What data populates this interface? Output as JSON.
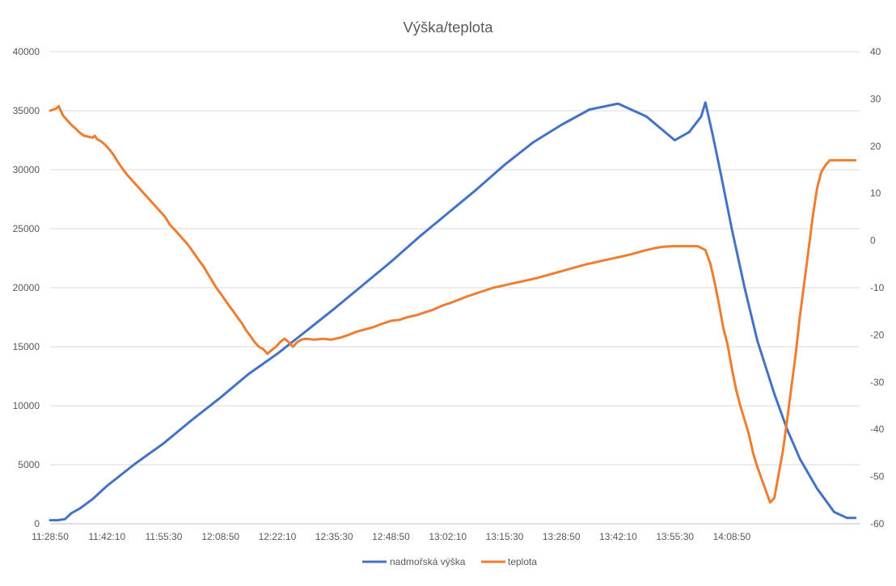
{
  "chart_data": {
    "type": "line",
    "title": "Výška/teplota",
    "x_ticks": [
      "11:28:50",
      "11:42:10",
      "11:55:30",
      "12:08:50",
      "12:22:10",
      "12:35:30",
      "12:48:50",
      "13:02:10",
      "13:15:30",
      "13:28:50",
      "13:42:10",
      "13:55:30",
      "14:08:50"
    ],
    "x_range_minutes": [
      0,
      190
    ],
    "y_left": {
      "ticks": [
        "0",
        "5000",
        "10000",
        "15000",
        "20000",
        "25000",
        "30000",
        "35000",
        "40000"
      ],
      "ylim": [
        0,
        40000
      ]
    },
    "y_right": {
      "ticks": [
        "-60",
        "-50",
        "-40",
        "-30",
        "-20",
        "-10",
        "0",
        "10",
        "20",
        "30",
        "40"
      ],
      "ylim": [
        -60,
        40
      ]
    },
    "grid": "horizontal",
    "legend_position": "bottom",
    "colors": {
      "altitude": "#4472C4",
      "temperature": "#ED7D31",
      "grid": "#D9D9D9",
      "text": "#595959"
    },
    "series": [
      {
        "name": "nadmořská výška",
        "axis": "left",
        "x": [
          0,
          1.8,
          3.5,
          5,
          7,
          10,
          13.3,
          20,
          26.6,
          33.3,
          40,
          46.6,
          53.3,
          60,
          66.6,
          73.3,
          80,
          86.6,
          93.3,
          100,
          106.6,
          113.3,
          120,
          126.6,
          133.3,
          140,
          146.6,
          150,
          152.8,
          153.8,
          155.5,
          157.5,
          160,
          163,
          166,
          170,
          173,
          176,
          180,
          184,
          187,
          189
        ],
        "y": [
          300,
          300,
          400,
          900,
          1300,
          2100,
          3200,
          5100,
          6800,
          8800,
          10700,
          12700,
          14400,
          16300,
          18200,
          20200,
          22200,
          24300,
          26300,
          28300,
          30400,
          32300,
          33800,
          35100,
          35600,
          34500,
          32500,
          33200,
          34500,
          35700,
          33000,
          29500,
          25000,
          20000,
          15500,
          11000,
          8000,
          5500,
          3000,
          1000,
          500,
          500
        ]
      },
      {
        "name": "teplota",
        "axis": "right",
        "x": [
          0,
          1.5,
          2,
          3,
          4,
          5,
          6,
          7,
          8,
          9,
          10,
          10.5,
          11,
          12,
          13,
          14,
          15,
          16,
          17,
          18,
          19,
          20,
          21,
          22,
          23,
          24,
          25,
          26,
          27,
          28,
          29,
          30,
          31,
          32,
          33,
          34,
          35,
          36,
          37,
          38,
          39,
          40,
          41,
          42,
          43,
          44,
          45,
          46,
          47,
          48,
          49,
          50,
          51,
          52,
          53,
          54,
          55,
          56,
          57,
          58,
          59,
          60,
          62,
          64,
          66,
          68,
          70,
          72,
          74,
          76,
          78,
          80,
          82,
          84,
          86,
          88,
          90,
          92,
          94,
          96,
          98,
          100,
          102,
          104,
          106,
          108,
          110,
          112,
          114,
          116,
          118,
          120,
          122,
          124,
          126,
          128,
          130,
          132,
          134,
          136,
          138,
          140,
          142,
          144,
          146,
          148,
          150,
          152,
          153.8,
          155,
          156,
          157,
          158,
          159,
          160,
          161,
          162,
          163,
          164,
          165,
          166,
          167,
          168,
          169,
          170,
          171,
          172,
          173,
          174,
          175,
          176,
          177,
          178,
          179,
          180,
          181,
          182,
          183,
          184,
          185,
          186,
          187,
          188,
          189
        ],
        "y": [
          27.5,
          28,
          28.5,
          26.5,
          25.5,
          24.5,
          23.7,
          22.8,
          22.2,
          22.0,
          21.8,
          22.2,
          21.5,
          21.0,
          20.2,
          19.2,
          18.0,
          16.5,
          15.2,
          14.0,
          13.0,
          12.0,
          11.0,
          10.0,
          9.0,
          8.0,
          7.0,
          6.0,
          5.0,
          3.5,
          2.5,
          1.5,
          0.5,
          -0.5,
          -1.7,
          -3.0,
          -4.3,
          -5.5,
          -7.0,
          -8.5,
          -10.0,
          -11.2,
          -12.5,
          -13.8,
          -15.0,
          -16.3,
          -17.5,
          -19.0,
          -20.2,
          -21.5,
          -22.5,
          -23.0,
          -24.0,
          -23.2,
          -22.5,
          -21.5,
          -20.8,
          -21.5,
          -22.5,
          -21.5,
          -21.0,
          -20.8,
          -21.0,
          -20.8,
          -21.0,
          -20.6,
          -20.0,
          -19.3,
          -18.8,
          -18.3,
          -17.6,
          -17.0,
          -16.8,
          -16.2,
          -15.8,
          -15.2,
          -14.6,
          -13.8,
          -13.2,
          -12.5,
          -11.8,
          -11.2,
          -10.6,
          -10.0,
          -9.6,
          -9.2,
          -8.8,
          -8.4,
          -8.0,
          -7.5,
          -7.0,
          -6.5,
          -6.0,
          -5.5,
          -5.0,
          -4.6,
          -4.2,
          -3.8,
          -3.4,
          -3.0,
          -2.5,
          -2.0,
          -1.6,
          -1.3,
          -1.2,
          -1.2,
          -1.2,
          -1.2,
          -2.0,
          -5.0,
          -9.0,
          -13.5,
          -18.5,
          -22.0,
          -27.0,
          -31.5,
          -35.0,
          -38.0,
          -41.0,
          -45.0,
          -48.0,
          -50.5,
          -53.0,
          -55.5,
          -54.5,
          -49.5,
          -44.5,
          -38.0,
          -31.0,
          -24.0,
          -16.0,
          -9.0,
          -2.0,
          5.0,
          11.0,
          14.5,
          16.0,
          17.0,
          17.0,
          17.0,
          17.0,
          17.0,
          17.0,
          17.0
        ]
      }
    ]
  }
}
